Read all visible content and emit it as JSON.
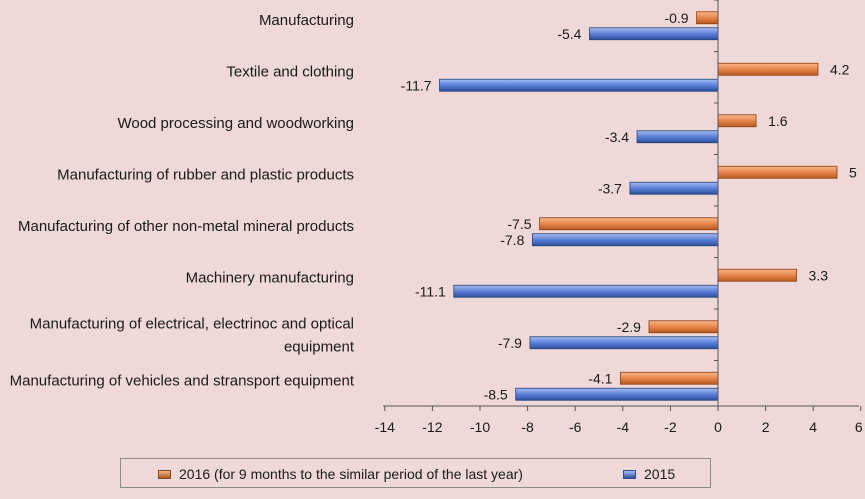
{
  "chart_data": {
    "type": "bar",
    "orientation": "horizontal",
    "categories": [
      "Manufacturing",
      "Textile and clothing",
      "Wood processing and woodworking",
      "Manufacturing of rubber and plastic products",
      "Manufacturing of other non-metal mineral products",
      "Machinery manufacturing",
      "Manufacturing of electrical, electrinoc and optical equipment",
      "Manufacturing of vehicles and stransport equipment"
    ],
    "category_lines": [
      [
        "Manufacturing"
      ],
      [
        "Textile and clothing"
      ],
      [
        "Wood processing and woodworking"
      ],
      [
        "Manufacturing of rubber and plastic products"
      ],
      [
        "Manufacturing of other non-metal mineral products"
      ],
      [
        "Machinery manufacturing"
      ],
      [
        "Manufacturing of electrical, electrinoc and optical",
        "equipment"
      ],
      [
        "Manufacturing of vehicles and stransport equipment"
      ]
    ],
    "series": [
      {
        "name": "2016 (for 9 months to the similar period of the last year)",
        "color": "#e07a3c",
        "values": [
          -0.9,
          4.2,
          1.6,
          5,
          -7.5,
          3.3,
          -2.9,
          -4.1
        ],
        "labels": [
          "-0.9",
          "4.2",
          "1.6",
          "5",
          "-7.5",
          "3.3",
          "-2.9",
          "-4.1"
        ]
      },
      {
        "name": "2015",
        "color": "#4a70c8",
        "values": [
          -5.4,
          -11.7,
          -3.4,
          -3.7,
          -7.8,
          -11.1,
          -7.9,
          -8.5
        ],
        "labels": [
          "-5.4",
          "-11.7",
          "-3.4",
          "-3.7",
          "-7.8",
          "-11.1",
          "-7.9",
          "-8.5"
        ]
      }
    ],
    "xlim": [
      -14,
      6
    ],
    "xticks": [
      -14,
      -12,
      -10,
      -8,
      -6,
      -4,
      -2,
      0,
      2,
      4,
      6
    ],
    "xtick_labels": [
      "-14",
      "-12",
      "-10",
      "-8",
      "-6",
      "-4",
      "-2",
      "0",
      "2",
      "4",
      "6"
    ],
    "title": "",
    "xlabel": "",
    "ylabel": "",
    "legend_position": "bottom"
  }
}
